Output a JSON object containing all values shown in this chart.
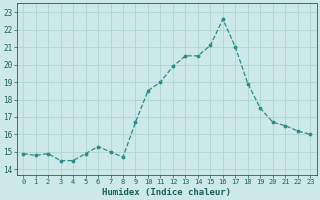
{
  "x": [
    0,
    1,
    2,
    3,
    4,
    5,
    6,
    7,
    8,
    9,
    10,
    11,
    12,
    13,
    14,
    15,
    16,
    17,
    18,
    19,
    20,
    21,
    22,
    23
  ],
  "y": [
    14.9,
    14.8,
    14.9,
    14.5,
    14.5,
    14.9,
    15.3,
    15.0,
    14.7,
    16.7,
    18.5,
    19.0,
    19.9,
    20.5,
    20.5,
    21.1,
    22.6,
    21.0,
    18.9,
    17.5,
    16.7,
    16.5,
    16.2,
    16.0
  ],
  "xlabel": "Humidex (Indice chaleur)",
  "ylim": [
    13.7,
    23.5
  ],
  "yticks": [
    14,
    15,
    16,
    17,
    18,
    19,
    20,
    21,
    22,
    23
  ],
  "xtick_labels": [
    "0",
    "1",
    "2",
    "3",
    "4",
    "5",
    "6",
    "7",
    "8",
    "9",
    "10",
    "11",
    "12",
    "13",
    "14",
    "15",
    "16",
    "17",
    "18",
    "19",
    "20",
    "21",
    "22",
    "23"
  ],
  "line_color": "#2e8b8b",
  "marker_color": "#2e8b8b",
  "bg_color": "#cce8e8",
  "grid_color": "#aed4d4",
  "font_color": "#1a5f5f"
}
